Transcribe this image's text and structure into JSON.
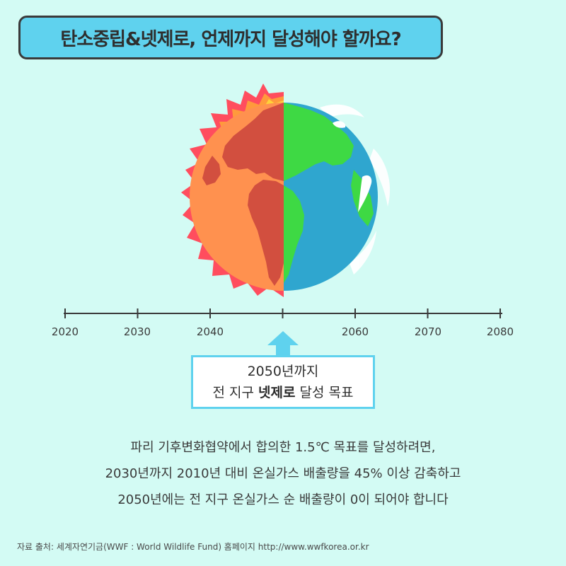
{
  "title": "탄소중립&넷제로, 언제까지 달성해야 할까요?",
  "timeline": {
    "ticks": [
      "2020",
      "2030",
      "2040",
      "2050",
      "2060",
      "2070",
      "2080"
    ],
    "labels": [
      "2020",
      "2030",
      "2040",
      "2060",
      "2070",
      "2080"
    ]
  },
  "goal": {
    "line1": "2050년까지",
    "line2_prefix": "전 지구 ",
    "line2_bold": "넷제로",
    "line2_suffix": " 달성 목표"
  },
  "description": [
    "파리 기후변화협약에서 합의한 1.5℃ 목표를 달성하려면,",
    "2030년까지 2010년 대비 온실가스 배출량을 45% 이상 감축하고",
    "2050년에는 전 지구 온실가스 순 배출량이 0이 되어야 합니다"
  ],
  "source": "자료 출처: 세계자연기금(WWF : World Wildlife Fund) 홈페이지 http://www.wwfkorea.or.kr",
  "icons": {
    "globe": "burning-earth-vs-healthy-earth-illustration",
    "arrow": "arrow-up-icon"
  },
  "colors": {
    "background": "#d3fbf4",
    "accent": "#5fd2ee",
    "fire": "#ff4d5e",
    "scorched_land": "#d24f3f",
    "scorched_ocean": "#ff914f",
    "healthy_ocean": "#2fa6cf",
    "healthy_land": "#3ed944"
  }
}
